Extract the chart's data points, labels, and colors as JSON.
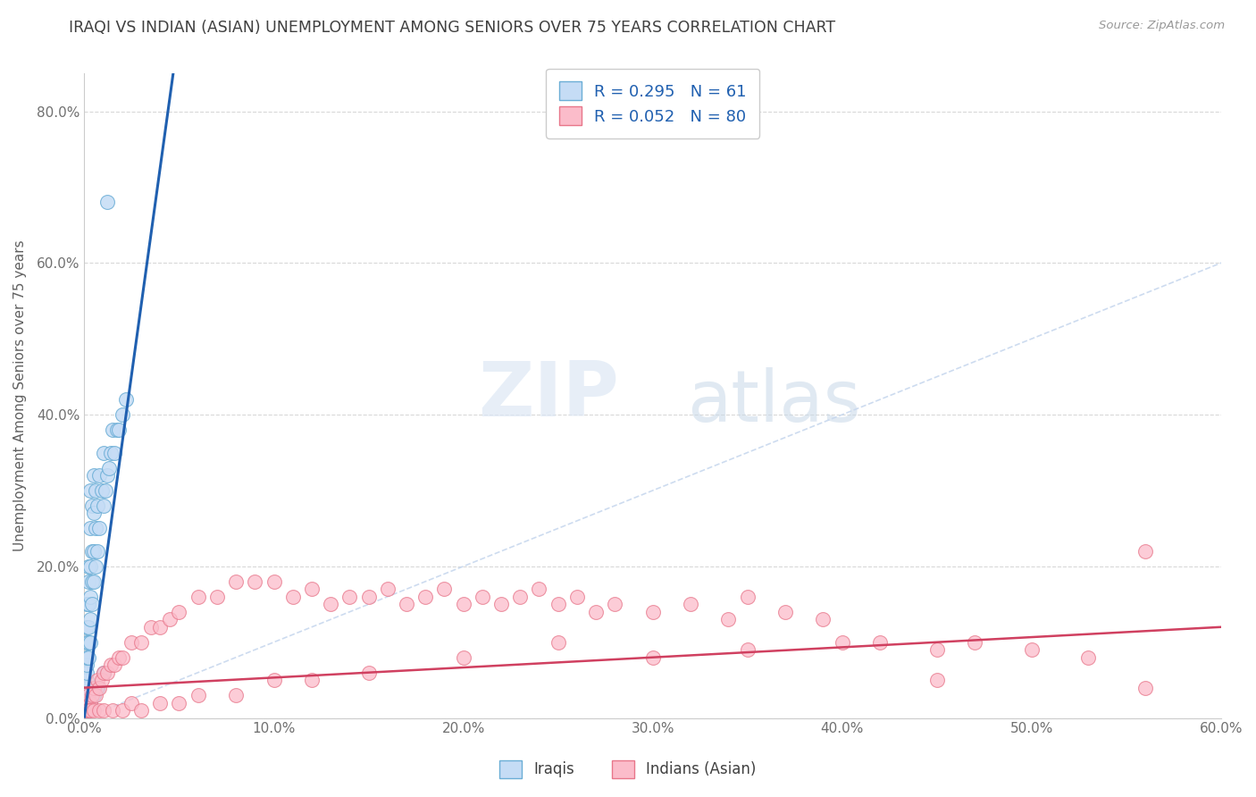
{
  "title": "IRAQI VS INDIAN (ASIAN) UNEMPLOYMENT AMONG SENIORS OVER 75 YEARS CORRELATION CHART",
  "source": "Source: ZipAtlas.com",
  "ylabel": "Unemployment Among Seniors over 75 years",
  "xlim": [
    0.0,
    0.6
  ],
  "ylim": [
    0.0,
    0.85
  ],
  "xticks": [
    0.0,
    0.1,
    0.2,
    0.3,
    0.4,
    0.5,
    0.6
  ],
  "xtick_labels": [
    "0.0%",
    "10.0%",
    "20.0%",
    "30.0%",
    "40.0%",
    "50.0%",
    "60.0%"
  ],
  "ytick_labels": [
    "0.0%",
    "20.0%",
    "40.0%",
    "60.0%",
    "80.0%"
  ],
  "yticks": [
    0.0,
    0.2,
    0.4,
    0.6,
    0.8
  ],
  "iraqi_color": "#c5dcf5",
  "iraqi_edge_color": "#6baed6",
  "indian_color": "#fbbcca",
  "indian_edge_color": "#e8768a",
  "trend_iraqi_color": "#2060b0",
  "trend_indian_color": "#d04060",
  "diagonal_color": "#c8d8ee",
  "R_iraqi": 0.295,
  "N_iraqi": 61,
  "R_indian": 0.052,
  "N_indian": 80,
  "legend_label_iraqi": "Iraqis",
  "legend_label_indian": "Indians (Asian)",
  "watermark_zip": "ZIP",
  "watermark_atlas": "atlas",
  "background_color": "#ffffff",
  "grid_color": "#d8d8d8",
  "iraqi_x": [
    0.001,
    0.001,
    0.001,
    0.001,
    0.001,
    0.001,
    0.001,
    0.001,
    0.001,
    0.001,
    0.002,
    0.002,
    0.002,
    0.002,
    0.002,
    0.002,
    0.003,
    0.003,
    0.003,
    0.003,
    0.003,
    0.003,
    0.004,
    0.004,
    0.004,
    0.004,
    0.005,
    0.005,
    0.005,
    0.005,
    0.006,
    0.006,
    0.006,
    0.007,
    0.007,
    0.008,
    0.008,
    0.009,
    0.01,
    0.01,
    0.011,
    0.012,
    0.013,
    0.014,
    0.015,
    0.016,
    0.017,
    0.018,
    0.02,
    0.022,
    0.001,
    0.001,
    0.002,
    0.002,
    0.003,
    0.004,
    0.005,
    0.006,
    0.007,
    0.01,
    0.012
  ],
  "iraqi_y": [
    0.02,
    0.03,
    0.04,
    0.05,
    0.06,
    0.07,
    0.08,
    0.1,
    0.12,
    0.15,
    0.08,
    0.1,
    0.12,
    0.15,
    0.18,
    0.2,
    0.1,
    0.13,
    0.16,
    0.2,
    0.25,
    0.3,
    0.15,
    0.18,
    0.22,
    0.28,
    0.18,
    0.22,
    0.27,
    0.32,
    0.2,
    0.25,
    0.3,
    0.22,
    0.28,
    0.25,
    0.32,
    0.3,
    0.28,
    0.35,
    0.3,
    0.32,
    0.33,
    0.35,
    0.38,
    0.35,
    0.38,
    0.38,
    0.4,
    0.42,
    0.01,
    0.01,
    0.01,
    0.02,
    0.02,
    0.03,
    0.03,
    0.04,
    0.04,
    0.06,
    0.68
  ],
  "indian_x": [
    0.001,
    0.002,
    0.003,
    0.004,
    0.005,
    0.006,
    0.007,
    0.008,
    0.009,
    0.01,
    0.012,
    0.014,
    0.016,
    0.018,
    0.02,
    0.025,
    0.03,
    0.035,
    0.04,
    0.045,
    0.05,
    0.06,
    0.07,
    0.08,
    0.09,
    0.1,
    0.11,
    0.12,
    0.13,
    0.14,
    0.15,
    0.16,
    0.17,
    0.18,
    0.19,
    0.2,
    0.21,
    0.22,
    0.23,
    0.24,
    0.25,
    0.26,
    0.27,
    0.28,
    0.3,
    0.32,
    0.34,
    0.35,
    0.37,
    0.39,
    0.001,
    0.002,
    0.003,
    0.005,
    0.008,
    0.01,
    0.015,
    0.02,
    0.025,
    0.03,
    0.04,
    0.05,
    0.06,
    0.08,
    0.1,
    0.12,
    0.15,
    0.2,
    0.25,
    0.3,
    0.35,
    0.4,
    0.42,
    0.45,
    0.47,
    0.5,
    0.53,
    0.56,
    0.45,
    0.56
  ],
  "indian_y": [
    0.02,
    0.03,
    0.02,
    0.03,
    0.04,
    0.03,
    0.05,
    0.04,
    0.05,
    0.06,
    0.06,
    0.07,
    0.07,
    0.08,
    0.08,
    0.1,
    0.1,
    0.12,
    0.12,
    0.13,
    0.14,
    0.16,
    0.16,
    0.18,
    0.18,
    0.18,
    0.16,
    0.17,
    0.15,
    0.16,
    0.16,
    0.17,
    0.15,
    0.16,
    0.17,
    0.15,
    0.16,
    0.15,
    0.16,
    0.17,
    0.15,
    0.16,
    0.14,
    0.15,
    0.14,
    0.15,
    0.13,
    0.16,
    0.14,
    0.13,
    0.01,
    0.01,
    0.01,
    0.01,
    0.01,
    0.01,
    0.01,
    0.01,
    0.02,
    0.01,
    0.02,
    0.02,
    0.03,
    0.03,
    0.05,
    0.05,
    0.06,
    0.08,
    0.1,
    0.08,
    0.09,
    0.1,
    0.1,
    0.09,
    0.1,
    0.09,
    0.08,
    0.22,
    0.05,
    0.04
  ],
  "title_color": "#404040",
  "legend_text_color": "#2060b0",
  "axis_label_color": "#606060",
  "tick_label_color": "#707070"
}
